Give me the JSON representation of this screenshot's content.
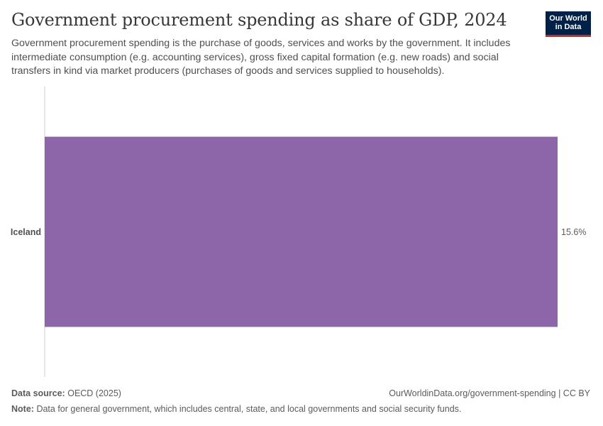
{
  "header": {
    "title": "Government procurement spending as share of GDP, 2024",
    "subtitle": "Government procurement spending is the purchase of goods, services and works by the government. It includes intermediate consumption (e.g. accounting services), gross fixed capital formation (e.g. new roads) and social transfers in kind via market producers (purchases of goods and services supplied to households).",
    "logo_line1": "Our World",
    "logo_line2": "in Data"
  },
  "colors": {
    "bar": "#8c66a8",
    "logo_bg": "#002147",
    "logo_accent": "#ce261e"
  },
  "chart_data": {
    "type": "bar",
    "orientation": "horizontal",
    "categories": [
      "Iceland"
    ],
    "values": [
      15.6
    ],
    "value_labels": [
      "15.6%"
    ],
    "unit": "%",
    "xlim": [
      0,
      15.6
    ]
  },
  "footer": {
    "source_label": "Data source:",
    "source_value": "OECD (2025)",
    "url": "OurWorldinData.org/government-spending",
    "license": "CC BY",
    "note_label": "Note:",
    "note_value": "Data for general government, which includes central, state, and local governments and social security funds."
  }
}
